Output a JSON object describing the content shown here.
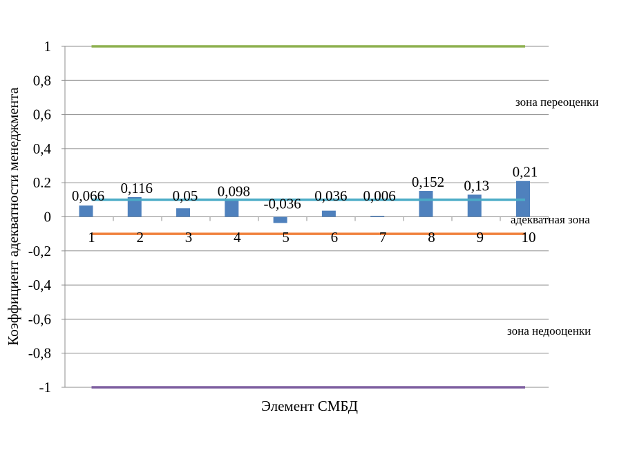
{
  "chart_data": {
    "type": "bar",
    "title": "",
    "xlabel": "Элемент СМБД",
    "ylabel": "Коэффициент адекватности менеджмента",
    "ylim": [
      -1,
      1
    ],
    "yticks": [
      1,
      0.8,
      0.6,
      0.4,
      0.2,
      0,
      -0.2,
      -0.4,
      -0.6,
      -0.8,
      -1
    ],
    "ytick_labels": [
      "1",
      "0,8",
      "0,6",
      "0,4",
      "0.2",
      "0",
      "-0,2",
      "-0,4",
      "-0,6",
      "-0,8",
      "-1"
    ],
    "grid": true,
    "categories": [
      "1",
      "2",
      "3",
      "4",
      "5",
      "6",
      "7",
      "8",
      "9",
      "10"
    ],
    "values": [
      0.066,
      0.116,
      0.05,
      0.098,
      -0.036,
      0.036,
      0.006,
      0.152,
      0.13,
      0.21
    ],
    "data_labels": [
      "0,066",
      "0,116",
      "0,05",
      "0,098",
      "-0,036",
      "0,036",
      "0,006",
      "0,152",
      "0,13",
      "0,21"
    ],
    "bar_color": "#4F81BD",
    "reference_lines": [
      {
        "value": 1,
        "color": "#8DB04F"
      },
      {
        "value": 0.1,
        "color": "#4BACC6"
      },
      {
        "value": -0.1,
        "color": "#F0803C"
      },
      {
        "value": -1,
        "color": "#7E5FA0"
      }
    ],
    "annotations": [
      "зона переоценки",
      "адекватная зона",
      "зона недооценки"
    ]
  }
}
